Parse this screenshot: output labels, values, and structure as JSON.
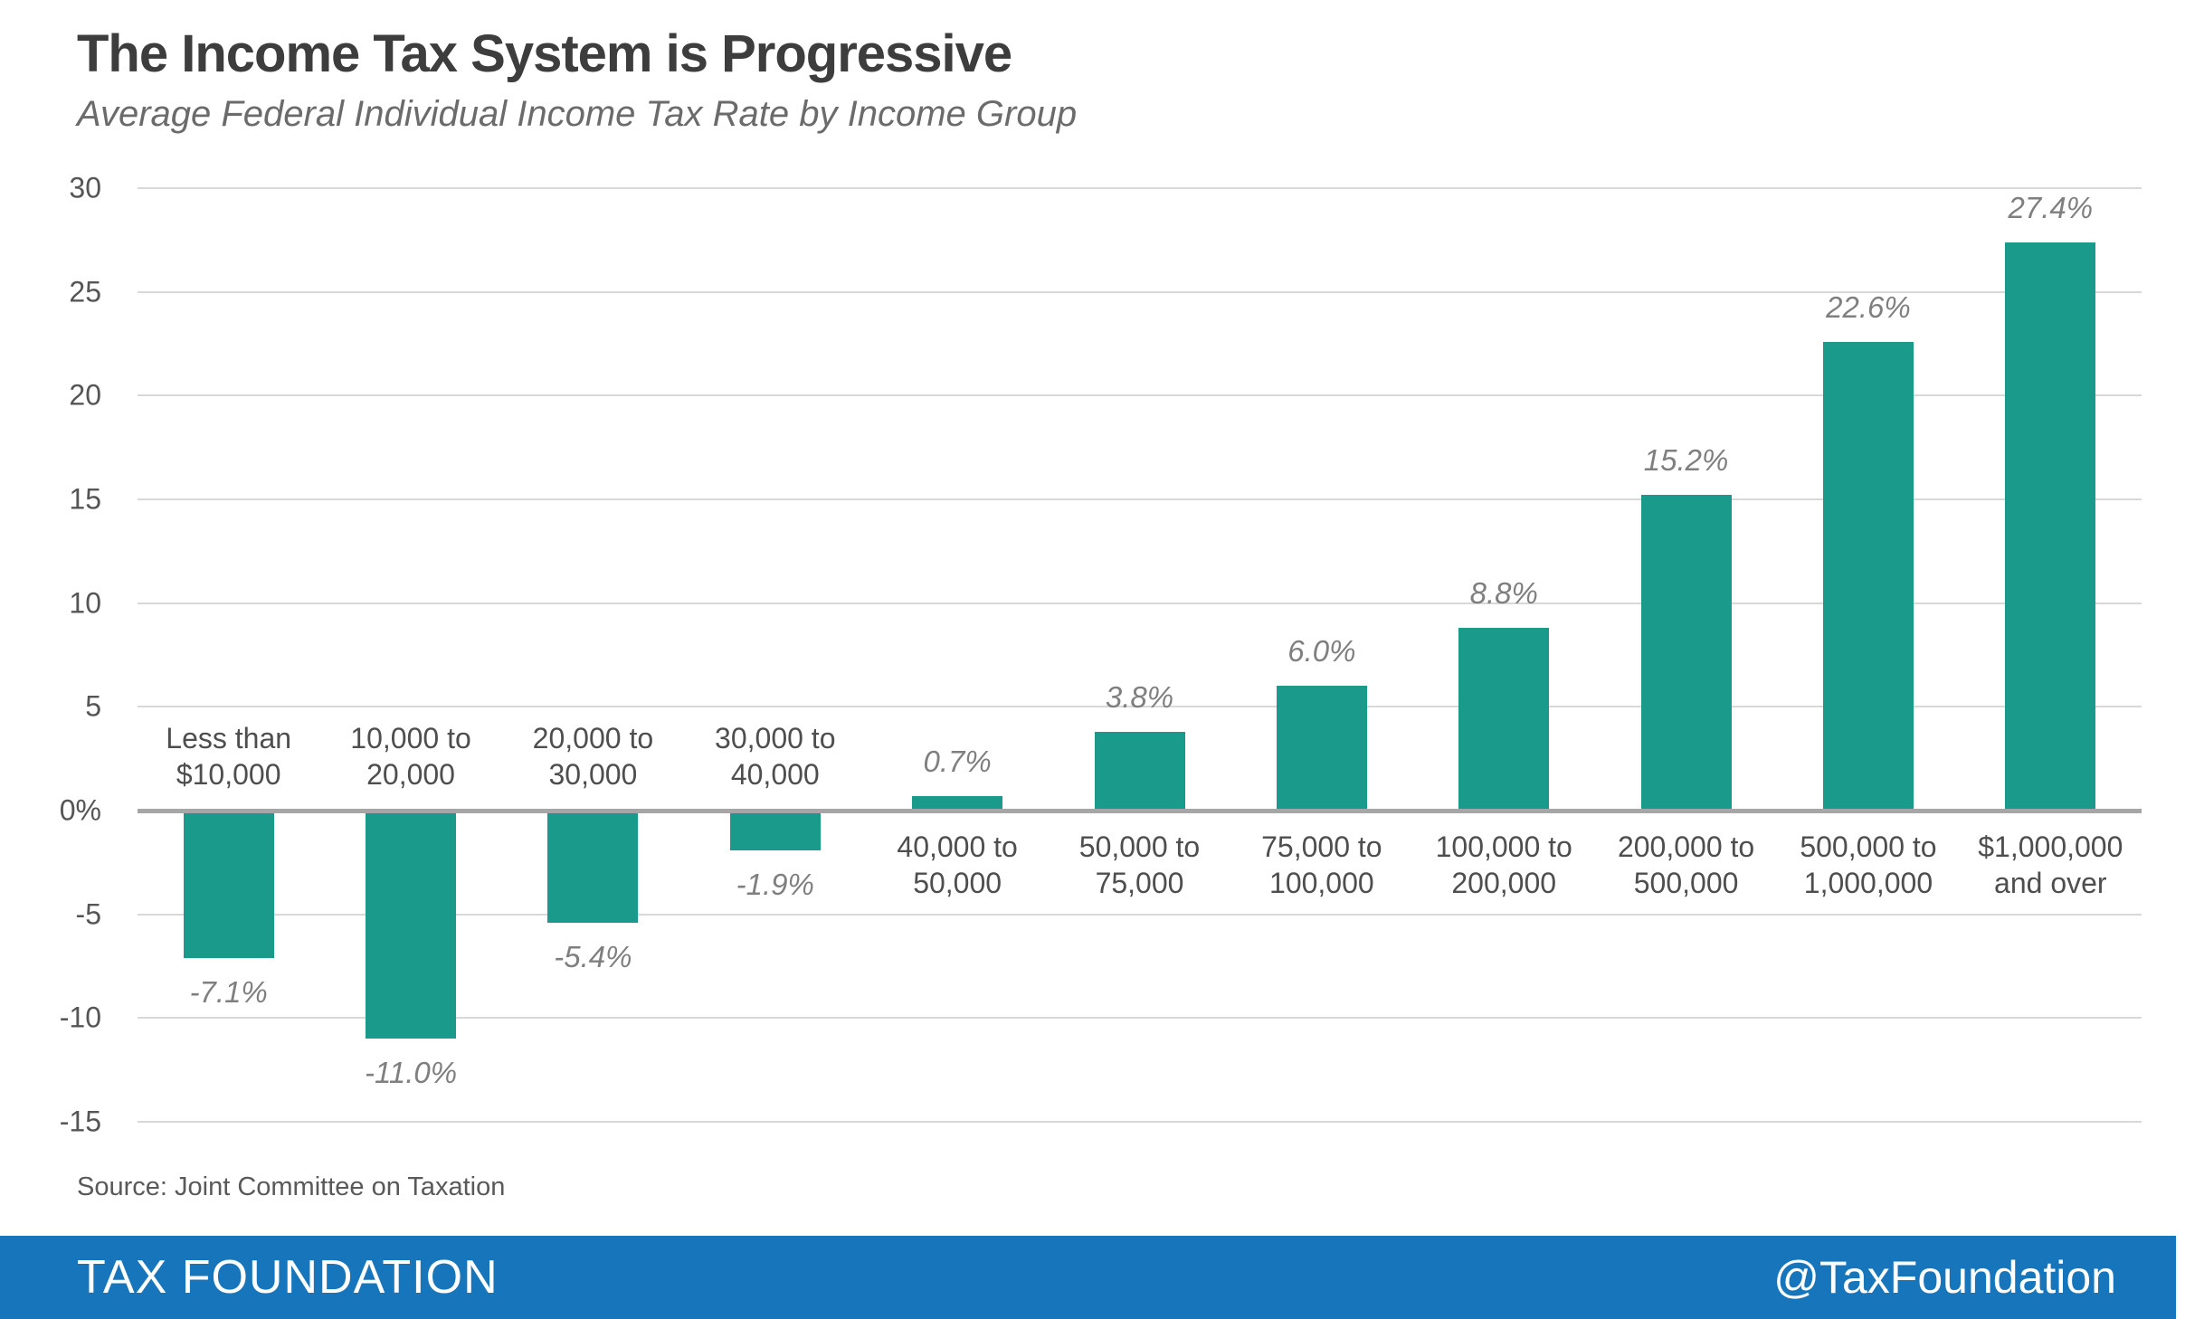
{
  "header": {
    "title": "The Income Tax System is Progressive",
    "subtitle": "Average Federal Individual Income Tax Rate by Income Group"
  },
  "chart_data": {
    "type": "bar",
    "title": "The Income Tax System is Progressive",
    "subtitle": "Average Federal Individual Income Tax Rate by Income Group",
    "xlabel": "",
    "ylabel": "",
    "ylim": [
      -15,
      30
    ],
    "grid": true,
    "legend_position": "none",
    "bar_color": "#1A9A8B",
    "categories": [
      [
        "Less than",
        "$10,000"
      ],
      [
        "10,000 to",
        "20,000"
      ],
      [
        "20,000 to",
        "30,000"
      ],
      [
        "30,000 to",
        "40,000"
      ],
      [
        "40,000 to",
        "50,000"
      ],
      [
        "50,000 to",
        "75,000"
      ],
      [
        "75,000 to",
        "100,000"
      ],
      [
        "100,000 to",
        "200,000"
      ],
      [
        "200,000 to",
        "500,000"
      ],
      [
        "500,000 to",
        "1,000,000"
      ],
      [
        "$1,000,000",
        "and over"
      ]
    ],
    "values": [
      -7.1,
      -11.0,
      -5.4,
      -1.9,
      0.7,
      3.8,
      6.0,
      8.8,
      15.2,
      22.6,
      27.4
    ],
    "value_labels": [
      "-7.1%",
      "-11.0%",
      "-5.4%",
      "-1.9%",
      "0.7%",
      "3.8%",
      "6.0%",
      "8.8%",
      "15.2%",
      "22.6%",
      "27.4%"
    ],
    "y_ticks": [
      {
        "label": "30",
        "value": 30
      },
      {
        "label": "25",
        "value": 25
      },
      {
        "label": "20",
        "value": 20
      },
      {
        "label": "15",
        "value": 15
      },
      {
        "label": "10",
        "value": 10
      },
      {
        "label": "5",
        "value": 5
      },
      {
        "label": "0%",
        "value": 0
      },
      {
        "label": "-5",
        "value": -5
      },
      {
        "label": "-10",
        "value": -10
      },
      {
        "label": "-15",
        "value": -15
      }
    ]
  },
  "source": "Source: Joint Committee on Taxation",
  "footer": {
    "brand": "TAX FOUNDATION",
    "handle": "@TaxFoundation",
    "bg_color": "#1776BB"
  }
}
